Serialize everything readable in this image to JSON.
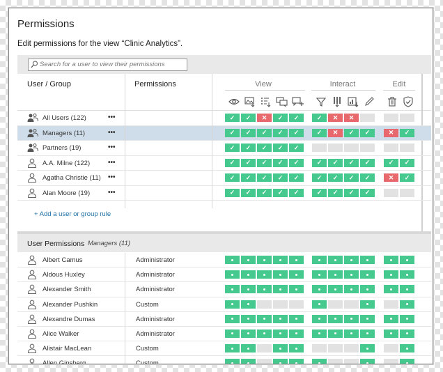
{
  "dialog": {
    "title": "Permissions",
    "subtitle": "Edit permissions for the view “Clinic Analytics”."
  },
  "search": {
    "placeholder": "Search for a user to view their permissions"
  },
  "header": {
    "user_group": "User / Group",
    "permissions": "Permissions",
    "groups": [
      {
        "label": "View",
        "icons": [
          "eye-icon",
          "image-download-icon",
          "filter-list-icon",
          "comment-icon",
          "comment-add-icon"
        ]
      },
      {
        "label": "Interact",
        "icons": [
          "filter-icon",
          "column-download-icon",
          "data-download-icon",
          "pencil-icon"
        ]
      },
      {
        "label": "Edit",
        "icons": [
          "trash-icon",
          "shield-check-icon"
        ]
      }
    ]
  },
  "rules": [
    {
      "name": "All Users (122)",
      "type": "group",
      "role": "",
      "more": "•••",
      "selected": false,
      "view": [
        "allow",
        "allow",
        "deny",
        "allow",
        "allow"
      ],
      "interact": [
        "allow",
        "deny",
        "deny",
        "none"
      ],
      "edit": [
        "none",
        "none"
      ]
    },
    {
      "name": "Managers (11)",
      "type": "group",
      "role": "",
      "more": "•••",
      "selected": true,
      "view": [
        "allow",
        "allow",
        "allow",
        "allow",
        "allow"
      ],
      "interact": [
        "allow",
        "deny",
        "allow",
        "allow"
      ],
      "edit": [
        "deny",
        "allow"
      ]
    },
    {
      "name": "Partners (19)",
      "type": "group",
      "role": "",
      "more": "•••",
      "selected": false,
      "view": [
        "allow",
        "allow",
        "allow",
        "allow",
        "allow"
      ],
      "interact": [
        "none",
        "none",
        "none",
        "none"
      ],
      "edit": [
        "none",
        "none"
      ]
    },
    {
      "name": "A.A. Milne (122)",
      "type": "user",
      "role": "",
      "more": "•••",
      "selected": false,
      "view": [
        "allow",
        "allow",
        "allow",
        "allow",
        "allow"
      ],
      "interact": [
        "allow",
        "allow",
        "allow",
        "allow"
      ],
      "edit": [
        "allow",
        "allow"
      ]
    },
    {
      "name": "Agatha Christie (11)",
      "type": "user",
      "role": "",
      "more": "•••",
      "selected": false,
      "view": [
        "allow",
        "allow",
        "allow",
        "allow",
        "allow"
      ],
      "interact": [
        "allow",
        "allow",
        "allow",
        "allow"
      ],
      "edit": [
        "deny",
        "allow"
      ]
    },
    {
      "name": "Alan Moore (19)",
      "type": "user",
      "role": "",
      "more": "•••",
      "selected": false,
      "view": [
        "allow",
        "allow",
        "allow",
        "allow",
        "allow"
      ],
      "interact": [
        "allow",
        "allow",
        "allow",
        "allow"
      ],
      "edit": [
        "none",
        "none"
      ]
    }
  ],
  "add_rule": "+ Add a user or group rule",
  "user_permissions": {
    "title": "User Permissions",
    "subtitle": "Managers (11)",
    "users": [
      {
        "name": "Albert Camus",
        "role": "Administrator",
        "view": [
          "allow",
          "allow",
          "allow",
          "allow",
          "allow"
        ],
        "interact": [
          "allow",
          "allow",
          "allow",
          "allow"
        ],
        "edit": [
          "allow",
          "allow"
        ]
      },
      {
        "name": "Aldous Huxley",
        "role": "Administrator",
        "view": [
          "allow",
          "allow",
          "allow",
          "allow",
          "allow"
        ],
        "interact": [
          "allow",
          "allow",
          "allow",
          "allow"
        ],
        "edit": [
          "allow",
          "allow"
        ]
      },
      {
        "name": "Alexander Smith",
        "role": "Administrator",
        "view": [
          "allow",
          "allow",
          "allow",
          "allow",
          "allow"
        ],
        "interact": [
          "allow",
          "allow",
          "allow",
          "allow"
        ],
        "edit": [
          "allow",
          "allow"
        ]
      },
      {
        "name": "Alexander Pushkin",
        "role": "Custom",
        "view": [
          "allow",
          "allow",
          "none",
          "none",
          "none"
        ],
        "interact": [
          "allow",
          "none",
          "none",
          "allow"
        ],
        "edit": [
          "none",
          "allow"
        ]
      },
      {
        "name": "Alexandre Dumas",
        "role": "Administrator",
        "view": [
          "allow",
          "allow",
          "allow",
          "allow",
          "allow"
        ],
        "interact": [
          "allow",
          "allow",
          "allow",
          "allow"
        ],
        "edit": [
          "allow",
          "allow"
        ]
      },
      {
        "name": "Alice Walker",
        "role": "Administrator",
        "view": [
          "allow",
          "allow",
          "allow",
          "allow",
          "allow"
        ],
        "interact": [
          "allow",
          "allow",
          "allow",
          "allow"
        ],
        "edit": [
          "allow",
          "allow"
        ]
      },
      {
        "name": "Alistair MacLean",
        "role": "Custom",
        "view": [
          "allow",
          "allow",
          "none",
          "allow",
          "allow"
        ],
        "interact": [
          "none",
          "none",
          "none",
          "allow"
        ],
        "edit": [
          "none",
          "allow"
        ]
      },
      {
        "name": "Allen Ginsberg",
        "role": "Custom",
        "view": [
          "allow",
          "allow",
          "none",
          "allow",
          "allow"
        ],
        "interact": [
          "allow",
          "none",
          "none",
          "allow"
        ],
        "edit": [
          "none",
          "allow"
        ]
      }
    ]
  },
  "colors": {
    "allow": "#46c98e",
    "deny": "#e8696d",
    "none": "#e2e2e2",
    "link": "#1d6fa6",
    "selected": "#cfddea"
  }
}
